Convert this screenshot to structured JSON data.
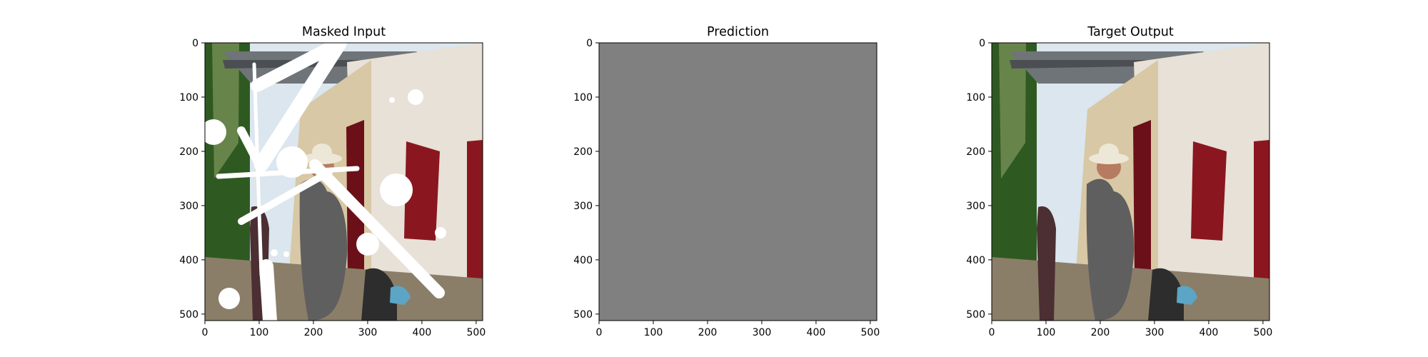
{
  "figure": {
    "background": "#ffffff",
    "panels": [
      {
        "id": "masked-input",
        "title": "Masked Input",
        "image": "masked-photo",
        "xticks": [
          0,
          100,
          200,
          300,
          400,
          500
        ],
        "yticks": [
          0,
          100,
          200,
          300,
          400,
          500
        ],
        "xlim": [
          0,
          512
        ],
        "ylim": [
          512,
          0
        ]
      },
      {
        "id": "prediction",
        "title": "Prediction",
        "image": "gray-fill",
        "fill_color": "#808080",
        "xticks": [
          0,
          100,
          200,
          300,
          400,
          500
        ],
        "yticks": [
          0,
          100,
          200,
          300,
          400,
          500
        ],
        "xlim": [
          0,
          512
        ],
        "ylim": [
          512,
          0
        ]
      },
      {
        "id": "target-output",
        "title": "Target Output",
        "image": "target-photo",
        "xticks": [
          0,
          100,
          200,
          300,
          400,
          500
        ],
        "yticks": [
          0,
          100,
          200,
          300,
          400,
          500
        ],
        "xlim": [
          0,
          512
        ],
        "ylim": [
          512,
          0
        ]
      }
    ]
  },
  "palette": {
    "sky": "#dbe6ee",
    "roof": "#6f7478",
    "roof_shadow": "#4b4f53",
    "wall_light": "#e7e1d7",
    "wall_side": "#d8c8a5",
    "wall_shadow": "#b8ab93",
    "red_doors": "#8a171f",
    "foliage": "#2e5a22",
    "foliage_light": "#67844a",
    "ground": "#8b7e69",
    "person_shirt": "#5f5f5f",
    "person_skin": "#b67b61",
    "hat": "#ede7d7",
    "mask": "#ffffff"
  }
}
